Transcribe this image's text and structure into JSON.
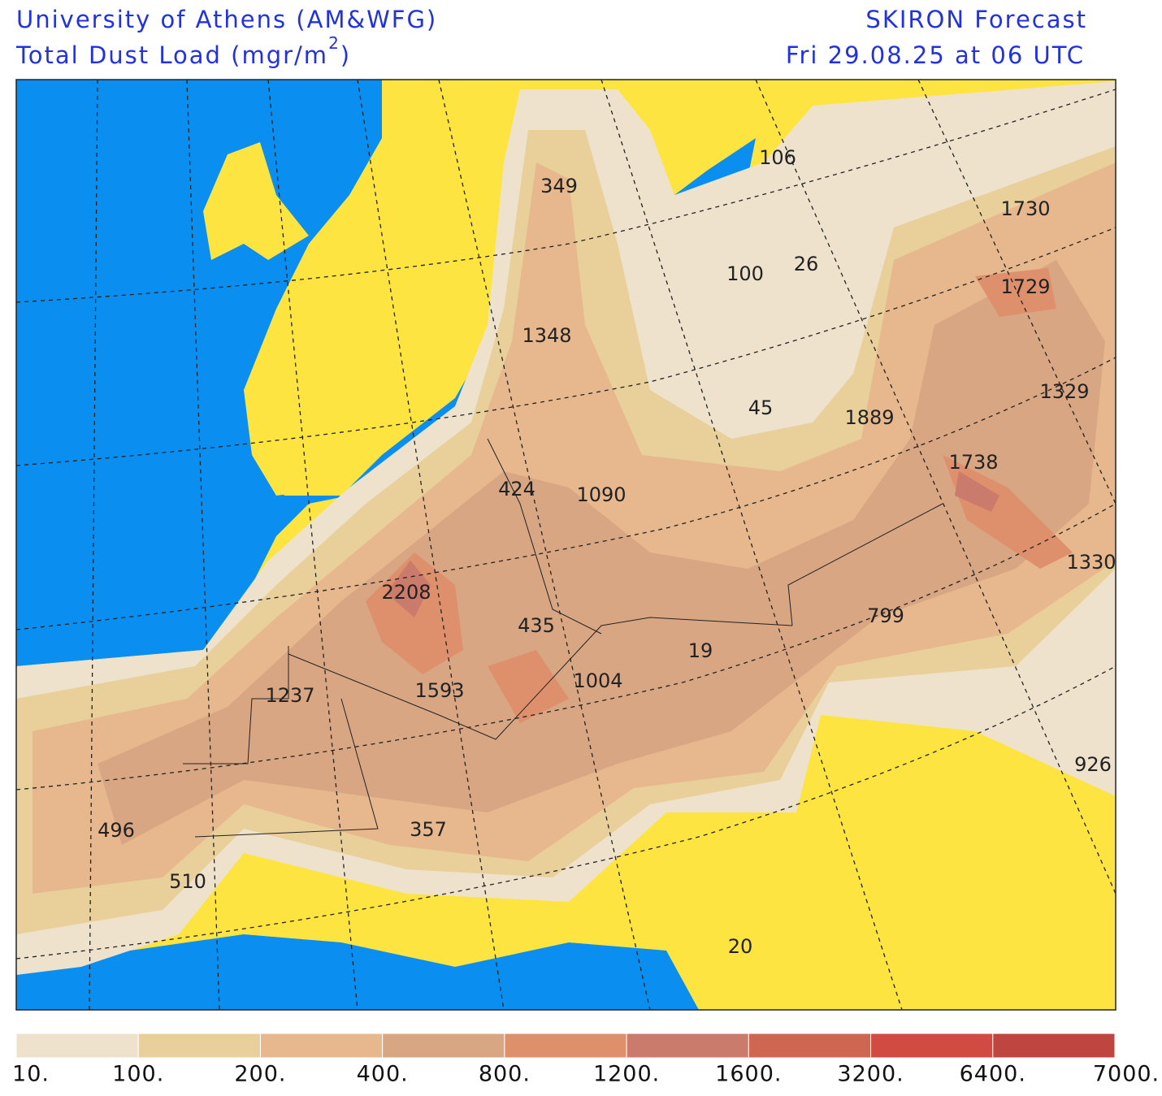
{
  "header": {
    "left_line1": "University of Athens (AM&WFG)",
    "left_line2": [
      "Total Dust Load (mgr/m",
      "2",
      ")"
    ],
    "right_line1": "SKIRON Forecast",
    "right_line2": "Fri 29.08.25 at 06 UTC"
  },
  "map": {
    "point_values": [
      106,
      349,
      1730,
      100,
      26,
      1729,
      1348,
      1329,
      45,
      1889,
      1738,
      424,
      1090,
      1330,
      2208,
      799,
      435,
      19,
      1004,
      1593,
      1237,
      926,
      496,
      357,
      510,
      20
    ]
  },
  "colorbar": {
    "labels": [
      "10.",
      "100.",
      "200.",
      "400.",
      "800.",
      "1200.",
      "1600.",
      "3200.",
      "6400.",
      "7000."
    ],
    "colors": [
      "#eee2cd",
      "#e9cf99",
      "#e7b88d",
      "#d9a683",
      "#de8f6c",
      "#cb7b6b",
      "#cf6651",
      "#d14b43",
      "#bf4640"
    ]
  }
}
